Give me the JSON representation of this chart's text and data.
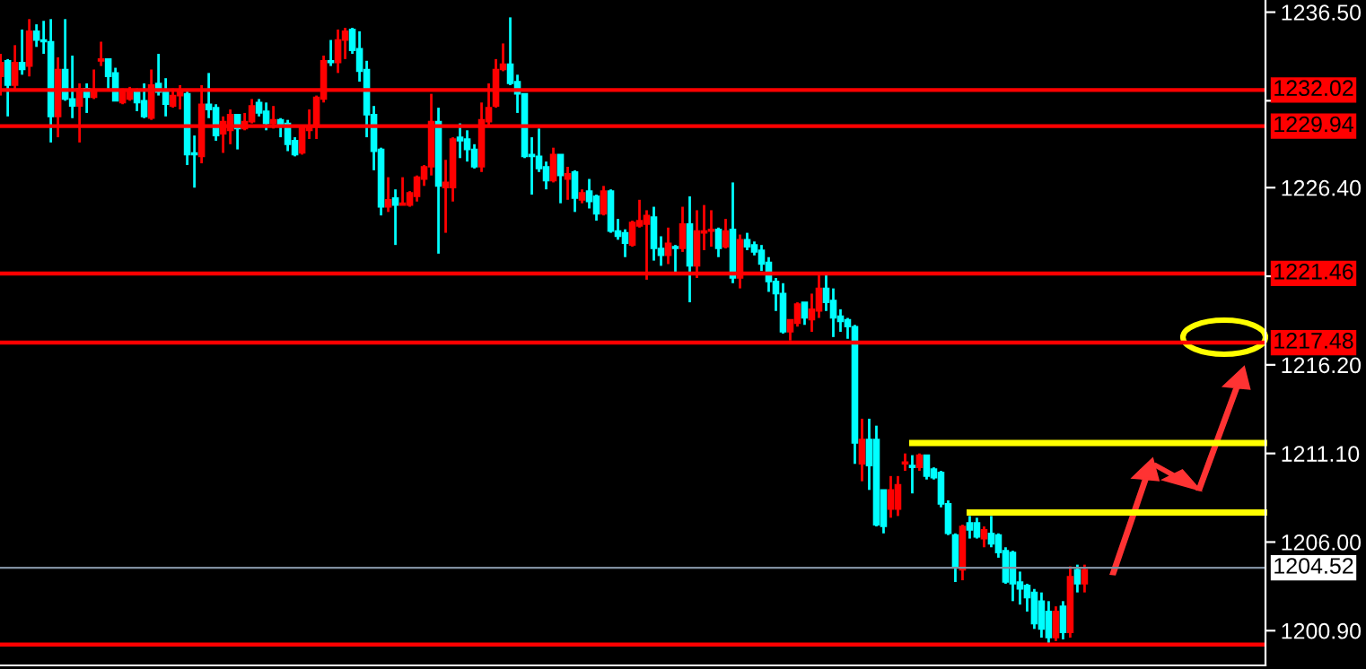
{
  "chart_data": {
    "type": "candlestick",
    "categories": [
      null,
      null,
      null,
      null,
      null,
      null,
      null,
      null,
      null,
      null,
      null,
      null,
      null,
      null,
      null,
      null,
      null,
      null,
      null,
      null,
      null,
      null,
      null,
      null,
      null,
      null,
      null,
      null,
      null,
      null,
      null,
      null,
      null,
      null,
      null,
      null,
      null,
      null,
      null,
      null,
      null,
      null,
      null,
      null,
      null,
      null,
      null,
      null,
      null,
      null,
      null,
      null,
      null,
      null,
      null,
      null,
      null,
      null,
      null,
      null,
      null,
      null,
      null,
      null,
      null,
      null,
      null,
      null,
      null,
      null,
      null,
      null,
      null,
      null,
      null,
      null,
      null,
      null,
      null,
      null,
      null,
      null,
      null,
      null,
      null,
      null,
      null,
      null,
      null,
      null,
      null,
      null,
      null,
      null,
      null,
      null,
      null,
      null,
      null,
      null,
      null,
      null,
      null,
      null,
      null,
      null,
      null,
      null,
      null,
      null,
      null,
      null,
      null,
      null,
      null,
      null,
      null,
      null,
      null,
      null,
      null,
      null,
      null,
      null,
      null,
      null,
      null,
      null,
      null,
      null,
      null,
      null,
      null,
      null,
      null,
      null,
      null,
      null,
      null,
      null,
      null,
      null,
      null,
      null,
      null,
      null,
      null,
      null,
      null,
      null,
      null,
      null,
      null,
      null,
      null,
      null,
      null,
      null,
      null,
      null,
      null,
      null,
      null,
      null,
      null,
      null,
      null,
      null,
      null,
      null,
      null,
      null,
      null,
      null,
      null,
      null,
      null
    ],
    "ohlc": [
      [
        1232.8,
        1234.1,
        1231.7,
        1233.6
      ],
      [
        1233.7,
        1233.8,
        1230.5,
        1232.3
      ],
      [
        1232.3,
        1234.6,
        1232.0,
        1233.6
      ],
      [
        1233.6,
        1235.5,
        1232.9,
        1233.2
      ],
      [
        1233.4,
        1236.1,
        1232.8,
        1235.4
      ],
      [
        1235.4,
        1235.8,
        1234.5,
        1234.9
      ],
      [
        1234.9,
        1236.0,
        1234.1,
        1234.8
      ],
      [
        1234.8,
        1236.1,
        1229.0,
        1230.5
      ],
      [
        1230.5,
        1233.9,
        1229.3,
        1233.2
      ],
      [
        1233.2,
        1236.1,
        1231.4,
        1231.5
      ],
      [
        1231.5,
        1234.0,
        1230.4,
        1231.1
      ],
      [
        1231.1,
        1232.4,
        1229.0,
        1232.1
      ],
      [
        1232.1,
        1232.4,
        1230.7,
        1231.6
      ],
      [
        1231.6,
        1233.2,
        1231.5,
        1231.9
      ],
      [
        1233.7,
        1234.8,
        1233.4,
        1233.8
      ],
      [
        1233.8,
        1233.8,
        1232.1,
        1232.8
      ],
      [
        1233.0,
        1233.3,
        1231.4,
        1231.4
      ],
      [
        1231.3,
        1232.1,
        1231.2,
        1231.9
      ],
      [
        1231.5,
        1232.2,
        1231.4,
        1232.0
      ],
      [
        1231.9,
        1232.1,
        1230.8,
        1231.3
      ],
      [
        1231.4,
        1232.4,
        1230.4,
        1230.5
      ],
      [
        1230.4,
        1233.2,
        1230.3,
        1232.3
      ],
      [
        1232.4,
        1234.1,
        1231.7,
        1231.9
      ],
      [
        1231.9,
        1232.7,
        1230.5,
        1231.2
      ],
      [
        1231.1,
        1232.1,
        1231.0,
        1231.7
      ],
      [
        1231.7,
        1232.3,
        1230.9,
        1232.0
      ],
      [
        1231.8,
        1232.0,
        1227.7,
        1228.3
      ],
      [
        1228.4,
        1229.4,
        1226.4,
        1228.3
      ],
      [
        1228.2,
        1232.3,
        1227.8,
        1231.2
      ],
      [
        1231.2,
        1233.0,
        1230.4,
        1230.9
      ],
      [
        1231.0,
        1231.2,
        1229.1,
        1229.4
      ],
      [
        1229.5,
        1230.5,
        1228.4,
        1230.2
      ],
      [
        1229.7,
        1230.9,
        1228.9,
        1230.6
      ],
      [
        1230.6,
        1230.6,
        1228.6,
        1229.8
      ],
      [
        1229.8,
        1230.7,
        1229.7,
        1230.2
      ],
      [
        1230.2,
        1231.5,
        1230.1,
        1231.1
      ],
      [
        1231.3,
        1231.5,
        1230.5,
        1230.7
      ],
      [
        1230.8,
        1231.3,
        1229.7,
        1230.1
      ],
      [
        1230.1,
        1231.1,
        1229.8,
        1230.3
      ],
      [
        1230.3,
        1230.4,
        1229.3,
        1230.0
      ],
      [
        1230.1,
        1230.3,
        1228.5,
        1228.9
      ],
      [
        1229.1,
        1229.3,
        1228.2,
        1228.3
      ],
      [
        1228.4,
        1230.0,
        1228.3,
        1229.9
      ],
      [
        1229.7,
        1230.9,
        1229.2,
        1229.9
      ],
      [
        1229.9,
        1231.7,
        1229.2,
        1231.6
      ],
      [
        1231.5,
        1234.0,
        1231.3,
        1233.7
      ],
      [
        1233.7,
        1234.9,
        1233.4,
        1233.6
      ],
      [
        1233.6,
        1235.5,
        1233.0,
        1234.9
      ],
      [
        1234.9,
        1235.6,
        1233.8,
        1235.4
      ],
      [
        1235.5,
        1235.6,
        1234.1,
        1234.3
      ],
      [
        1234.4,
        1235.4,
        1232.5,
        1233.1
      ],
      [
        1233.2,
        1233.7,
        1229.3,
        1230.6
      ],
      [
        1230.6,
        1231.1,
        1227.4,
        1228.5
      ],
      [
        1228.6,
        1228.7,
        1224.8,
        1225.3
      ],
      [
        1225.3,
        1227.0,
        1225.0,
        1225.7
      ],
      [
        1225.8,
        1226.3,
        1223.1,
        1225.4
      ],
      [
        1225.4,
        1227.0,
        1225.4,
        1225.5
      ],
      [
        1225.4,
        1226.2,
        1225.3,
        1226.1
      ],
      [
        1225.9,
        1227.1,
        1225.6,
        1227.0
      ],
      [
        1226.9,
        1227.7,
        1226.5,
        1227.6
      ],
      [
        1227.6,
        1231.8,
        1227.1,
        1230.2
      ],
      [
        1230.2,
        1231.0,
        1222.6,
        1226.5
      ],
      [
        1226.4,
        1228.0,
        1223.8,
        1226.7
      ],
      [
        1226.4,
        1229.3,
        1225.6,
        1229.2
      ],
      [
        1229.3,
        1230.1,
        1228.1,
        1229.1
      ],
      [
        1229.2,
        1229.7,
        1227.9,
        1228.6
      ],
      [
        1228.6,
        1228.9,
        1227.5,
        1227.6
      ],
      [
        1227.6,
        1231.3,
        1227.3,
        1230.3
      ],
      [
        1230.2,
        1232.4,
        1230.0,
        1231.0
      ],
      [
        1231.1,
        1233.8,
        1231.0,
        1233.2
      ],
      [
        1233.2,
        1234.7,
        1233.1,
        1233.5
      ],
      [
        1233.5,
        1236.2,
        1232.3,
        1232.4
      ],
      [
        1232.5,
        1232.9,
        1230.7,
        1231.8
      ],
      [
        1231.8,
        1231.8,
        1228.1,
        1228.2
      ],
      [
        1228.3,
        1229.3,
        1226.0,
        1228.2
      ],
      [
        1228.2,
        1229.8,
        1227.3,
        1227.5
      ],
      [
        1227.6,
        1227.9,
        1226.3,
        1226.8
      ],
      [
        1226.8,
        1228.7,
        1226.7,
        1228.3
      ],
      [
        1228.3,
        1228.3,
        1225.5,
        1227.1
      ],
      [
        1226.9,
        1227.6,
        1225.7,
        1227.2
      ],
      [
        1227.3,
        1227.4,
        1225.0,
        1225.8
      ],
      [
        1225.7,
        1226.3,
        1225.5,
        1226.1
      ],
      [
        1226.2,
        1226.9,
        1225.2,
        1225.6
      ],
      [
        1225.9,
        1226.0,
        1224.5,
        1224.9
      ],
      [
        1224.9,
        1226.5,
        1224.8,
        1226.2
      ],
      [
        1226.2,
        1226.3,
        1223.8,
        1223.9
      ],
      [
        1223.9,
        1224.6,
        1223.4,
        1223.6
      ],
      [
        1223.8,
        1224.0,
        1222.4,
        1223.2
      ],
      [
        1223.1,
        1224.5,
        1223.0,
        1224.4
      ],
      [
        1224.2,
        1225.7,
        1224.1,
        1224.5
      ],
      [
        1224.3,
        1225.1,
        1221.1,
        1224.8
      ],
      [
        1224.7,
        1225.3,
        1222.2,
        1222.9
      ],
      [
        1222.9,
        1223.6,
        1221.9,
        1222.5
      ],
      [
        1222.5,
        1224.1,
        1222.0,
        1223.2
      ],
      [
        1223.0,
        1223.1,
        1221.5,
        1222.9
      ],
      [
        1222.9,
        1225.3,
        1222.7,
        1224.3
      ],
      [
        1224.3,
        1225.9,
        1219.8,
        1221.9
      ],
      [
        1221.9,
        1225.1,
        1221.2,
        1223.9
      ],
      [
        1223.8,
        1225.4,
        1222.8,
        1223.9
      ],
      [
        1223.9,
        1225.1,
        1223.0,
        1224.0
      ],
      [
        1224.0,
        1224.1,
        1222.4,
        1222.9
      ],
      [
        1223.0,
        1224.6,
        1222.9,
        1223.9
      ],
      [
        1224.0,
        1226.7,
        1220.9,
        1221.2
      ],
      [
        1221.2,
        1223.7,
        1220.6,
        1223.4
      ],
      [
        1223.4,
        1223.8,
        1222.8,
        1223.0
      ],
      [
        1223.1,
        1223.3,
        1222.5,
        1222.7
      ],
      [
        1222.8,
        1223.1,
        1221.6,
        1222.0
      ],
      [
        1222.1,
        1222.4,
        1220.4,
        1221.0
      ],
      [
        1221.0,
        1221.2,
        1219.3,
        1220.3
      ],
      [
        1220.3,
        1220.9,
        1218.0,
        1218.1
      ],
      [
        1218.1,
        1218.8,
        1217.6,
        1218.8
      ],
      [
        1218.6,
        1219.8,
        1218.4,
        1219.7
      ],
      [
        1219.8,
        1219.8,
        1218.5,
        1218.9
      ],
      [
        1218.8,
        1220.3,
        1218.1,
        1219.4
      ],
      [
        1219.3,
        1221.4,
        1218.9,
        1220.6
      ],
      [
        1220.6,
        1221.4,
        1219.3,
        1219.8
      ],
      [
        1219.9,
        1220.6,
        1217.8,
        1218.9
      ],
      [
        1219.0,
        1219.4,
        1218.1,
        1218.7
      ],
      [
        1218.8,
        1218.9,
        1217.7,
        1218.4
      ],
      [
        1218.4,
        1218.5,
        1210.5,
        1211.7
      ],
      [
        1210.5,
        1213.1,
        1209.5,
        1211.9
      ],
      [
        1211.9,
        1213.1,
        1209.0,
        1210.4
      ],
      [
        1211.9,
        1212.7,
        1206.9,
        1207.0
      ],
      [
        1209.0,
        1209.0,
        1206.5,
        1206.9
      ],
      [
        1207.9,
        1209.8,
        1207.4,
        1209.0
      ],
      [
        1207.9,
        1209.8,
        1207.5,
        1209.3
      ],
      [
        1210.5,
        1211.1,
        1210.1,
        1210.6
      ],
      [
        1210.4,
        1211.0,
        1208.8,
        1210.3
      ],
      [
        1210.3,
        1211.1,
        1210.1,
        1211.0
      ],
      [
        1211.0,
        1211.0,
        1209.6,
        1209.8
      ],
      [
        1210.2,
        1210.3,
        1209.6,
        1209.7
      ],
      [
        1210.0,
        1210.1,
        1208.0,
        1208.2
      ],
      [
        1208.2,
        1208.4,
        1206.4,
        1206.5
      ],
      [
        1206.4,
        1206.5,
        1203.7,
        1204.6
      ],
      [
        1204.4,
        1207.0,
        1203.8,
        1206.9
      ],
      [
        1207.1,
        1207.5,
        1206.2,
        1206.7
      ],
      [
        1207.1,
        1207.4,
        1206.2,
        1206.3
      ],
      [
        1206.2,
        1206.9,
        1205.7,
        1206.7
      ],
      [
        1206.5,
        1207.5,
        1205.7,
        1205.9
      ],
      [
        1206.4,
        1206.5,
        1205.1,
        1205.4
      ],
      [
        1205.5,
        1205.7,
        1203.6,
        1203.7
      ],
      [
        1205.4,
        1205.5,
        1202.6,
        1203.6
      ],
      [
        1203.7,
        1204.3,
        1202.4,
        1203.3
      ],
      [
        1203.5,
        1203.6,
        1202.0,
        1202.8
      ],
      [
        1203.1,
        1203.3,
        1201.0,
        1201.3
      ],
      [
        1202.6,
        1203.1,
        1200.5,
        1201.0
      ],
      [
        1202.0,
        1202.6,
        1200.2,
        1200.5
      ],
      [
        1200.5,
        1202.3,
        1200.3,
        1202.0
      ],
      [
        1202.3,
        1202.6,
        1200.4,
        1200.8
      ],
      [
        1200.8,
        1204.6,
        1200.5,
        1204.0
      ],
      [
        1204.4,
        1204.7,
        1203.1,
        1203.6
      ],
      [
        1203.6,
        1204.7,
        1203.1,
        1204.4
      ],
      null,
      null,
      null,
      null,
      null,
      null,
      null,
      null,
      null,
      null,
      null,
      null,
      null,
      null,
      null,
      null,
      null,
      null,
      null,
      null,
      null,
      null,
      null,
      null,
      null
    ],
    "colors": [
      "#ff0000",
      "#00ffff",
      "#ff0000",
      "#00ffff",
      "#ff0000",
      "#00ffff",
      "#00ffff",
      "#00ffff",
      "#ff0000",
      "#00ffff",
      "#00ffff",
      "#ff0000",
      "#00ffff",
      "#ff0000",
      "#ff0000",
      "#00ffff",
      "#00ffff",
      "#ff0000",
      "#ff0000",
      "#00ffff",
      "#00ffff",
      "#ff0000",
      "#00ffff",
      "#00ffff",
      "#ff0000",
      "#ff0000",
      "#00ffff",
      "#00ffff",
      "#ff0000",
      "#00ffff",
      "#00ffff",
      "#ff0000",
      "#ff0000",
      "#00ffff",
      "#ff0000",
      "#ff0000",
      "#00ffff",
      "#00ffff",
      "#ff0000",
      "#00ffff",
      "#00ffff",
      "#00ffff",
      "#ff0000",
      "#ff0000",
      "#ff0000",
      "#ff0000",
      "#00ffff",
      "#ff0000",
      "#ff0000",
      "#00ffff",
      "#00ffff",
      "#00ffff",
      "#00ffff",
      "#00ffff",
      "#ff0000",
      "#00ffff",
      "#ff0000",
      "#ff0000",
      "#ff0000",
      "#ff0000",
      "#ff0000",
      "#00ffff",
      "#ff0000",
      "#ff0000",
      "#00ffff",
      "#00ffff",
      "#00ffff",
      "#ff0000",
      "#ff0000",
      "#ff0000",
      "#ff0000",
      "#00ffff",
      "#00ffff",
      "#00ffff",
      "#00ffff",
      "#00ffff",
      "#00ffff",
      "#ff0000",
      "#00ffff",
      "#ff0000",
      "#00ffff",
      "#ff0000",
      "#00ffff",
      "#00ffff",
      "#ff0000",
      "#00ffff",
      "#00ffff",
      "#00ffff",
      "#ff0000",
      "#ff0000",
      "#ff0000",
      "#00ffff",
      "#00ffff",
      "#ff0000",
      "#00ffff",
      "#ff0000",
      "#00ffff",
      "#ff0000",
      "#ff0000",
      "#ff0000",
      "#00ffff",
      "#ff0000",
      "#00ffff",
      "#ff0000",
      "#00ffff",
      "#00ffff",
      "#00ffff",
      "#00ffff",
      "#00ffff",
      "#00ffff",
      "#ff0000",
      "#ff0000",
      "#00ffff",
      "#ff0000",
      "#ff0000",
      "#00ffff",
      "#00ffff",
      "#00ffff",
      "#00ffff",
      "#00ffff",
      "#ff0000",
      "#00ffff",
      "#00ffff",
      "#00ffff",
      "#ff0000",
      "#ff0000",
      "#ff0000",
      "#00ffff",
      "#ff0000",
      "#00ffff",
      "#00ffff",
      "#00ffff",
      "#00ffff",
      "#00ffff",
      "#ff0000",
      "#00ffff",
      "#00ffff",
      "#ff0000",
      "#00ffff",
      "#00ffff",
      "#00ffff",
      "#00ffff",
      "#00ffff",
      "#00ffff",
      "#00ffff",
      "#00ffff",
      "#00ffff",
      "#ff0000",
      "#00ffff",
      "#ff0000",
      "#00ffff",
      "#ff0000",
      null,
      null,
      null,
      null,
      null,
      null,
      null,
      null,
      null,
      null,
      null,
      null,
      null,
      null,
      null,
      null,
      null,
      null,
      null,
      null,
      null,
      null,
      null,
      null,
      null
    ],
    "series": [
      {
        "type": "line",
        "color": "#ffff00",
        "values": [
          null,
          null,
          null,
          null,
          null,
          null,
          null,
          null,
          null,
          null,
          null,
          null,
          null,
          null,
          null,
          null,
          null,
          null,
          null,
          null,
          null,
          null,
          null,
          null,
          null,
          null,
          null,
          null,
          null,
          null,
          null,
          null,
          null,
          null,
          null,
          null,
          null,
          null,
          null,
          null,
          null,
          null,
          null,
          null,
          null,
          null,
          null,
          null,
          null,
          null,
          null,
          null,
          null,
          null,
          null,
          null,
          null,
          null,
          null,
          null,
          null,
          null,
          null,
          null,
          null,
          null,
          null,
          null,
          null,
          null,
          null,
          null,
          null,
          null,
          null,
          null,
          null,
          null,
          null,
          null,
          null,
          null,
          null,
          null,
          null,
          null,
          null,
          null,
          null,
          null,
          null,
          null,
          null,
          null,
          null,
          null,
          null,
          null,
          null,
          null,
          null,
          null,
          null,
          null,
          null,
          null,
          null,
          null,
          null,
          null,
          null,
          null,
          null,
          null,
          null,
          null,
          null,
          null,
          null,
          null,
          null,
          null,
          null,
          null,
          null,
          null,
          null,
          1211.7,
          null,
          null,
          null,
          null,
          null,
          null,
          null,
          null,
          null,
          null,
          null,
          null,
          null,
          null,
          null,
          null,
          null,
          null,
          null,
          null,
          null,
          null,
          null,
          null,
          null,
          null,
          null,
          null,
          null,
          null,
          null,
          null,
          null,
          null,
          null,
          null,
          null,
          null,
          null,
          null,
          null,
          null,
          null,
          null,
          null,
          null,
          null,
          null,
          1211.7
        ]
      },
      {
        "type": "line",
        "color": "#ffff00",
        "values": [
          null,
          null,
          null,
          null,
          null,
          null,
          null,
          null,
          null,
          null,
          null,
          null,
          null,
          null,
          null,
          null,
          null,
          null,
          null,
          null,
          null,
          null,
          null,
          null,
          null,
          null,
          null,
          null,
          null,
          null,
          null,
          null,
          null,
          null,
          null,
          null,
          null,
          null,
          null,
          null,
          null,
          null,
          null,
          null,
          null,
          null,
          null,
          null,
          null,
          null,
          null,
          null,
          null,
          null,
          null,
          null,
          null,
          null,
          null,
          null,
          null,
          null,
          null,
          null,
          null,
          null,
          null,
          null,
          null,
          null,
          null,
          null,
          null,
          null,
          null,
          null,
          null,
          null,
          null,
          null,
          null,
          null,
          null,
          null,
          null,
          null,
          null,
          null,
          null,
          null,
          null,
          null,
          null,
          null,
          null,
          null,
          null,
          null,
          null,
          null,
          null,
          null,
          null,
          null,
          null,
          null,
          null,
          null,
          null,
          null,
          null,
          null,
          null,
          null,
          null,
          null,
          null,
          null,
          null,
          null,
          null,
          null,
          null,
          null,
          null,
          null,
          null,
          null,
          null,
          null,
          null,
          null,
          null,
          null,
          null,
          1207.7,
          null,
          null,
          null,
          null,
          null,
          null,
          null,
          null,
          null,
          null,
          null,
          null,
          null,
          null,
          null,
          null,
          null,
          null,
          null,
          null,
          null,
          null,
          null,
          null,
          null,
          null,
          null,
          null,
          null,
          null,
          null,
          null,
          null,
          null,
          null,
          null,
          null,
          null,
          null,
          null,
          1207.7
        ]
      }
    ],
    "ref_lines": [
      {
        "axis": "y",
        "value": 1232.02,
        "label": "1232.02",
        "color": "#ff0000"
      },
      {
        "axis": "y",
        "value": 1229.94,
        "label": "1229.94",
        "color": "#ff0000"
      },
      {
        "axis": "y",
        "value": 1221.46,
        "label": "1221.46",
        "color": "#ff0000"
      },
      {
        "axis": "y",
        "value": 1217.48,
        "label": "1217.48",
        "color": "#ff0000"
      },
      {
        "axis": "y",
        "value": 1204.52,
        "label": "1204.52",
        "color": "#7f8fa0"
      },
      {
        "axis": "y",
        "value": 1200.1,
        "color": "#ff0000"
      }
    ],
    "ylim": [
      1198.9,
      1237.2
    ],
    "yticks": [
      {
        "value": 1236.5,
        "label": "1236.50"
      },
      {
        "value": 1231.4,
        "label": null
      },
      {
        "value": 1226.4,
        "label": "1226.40"
      },
      {
        "value": 1221.3,
        "label": null
      },
      {
        "value": 1216.2,
        "label": "1216.20"
      },
      {
        "value": 1211.1,
        "label": "1211.10"
      },
      {
        "value": 1206.0,
        "label": "1206.00"
      },
      {
        "value": 1200.9,
        "label": "1200.90"
      }
    ],
    "tick_labels": "y",
    "grid": false
  }
}
